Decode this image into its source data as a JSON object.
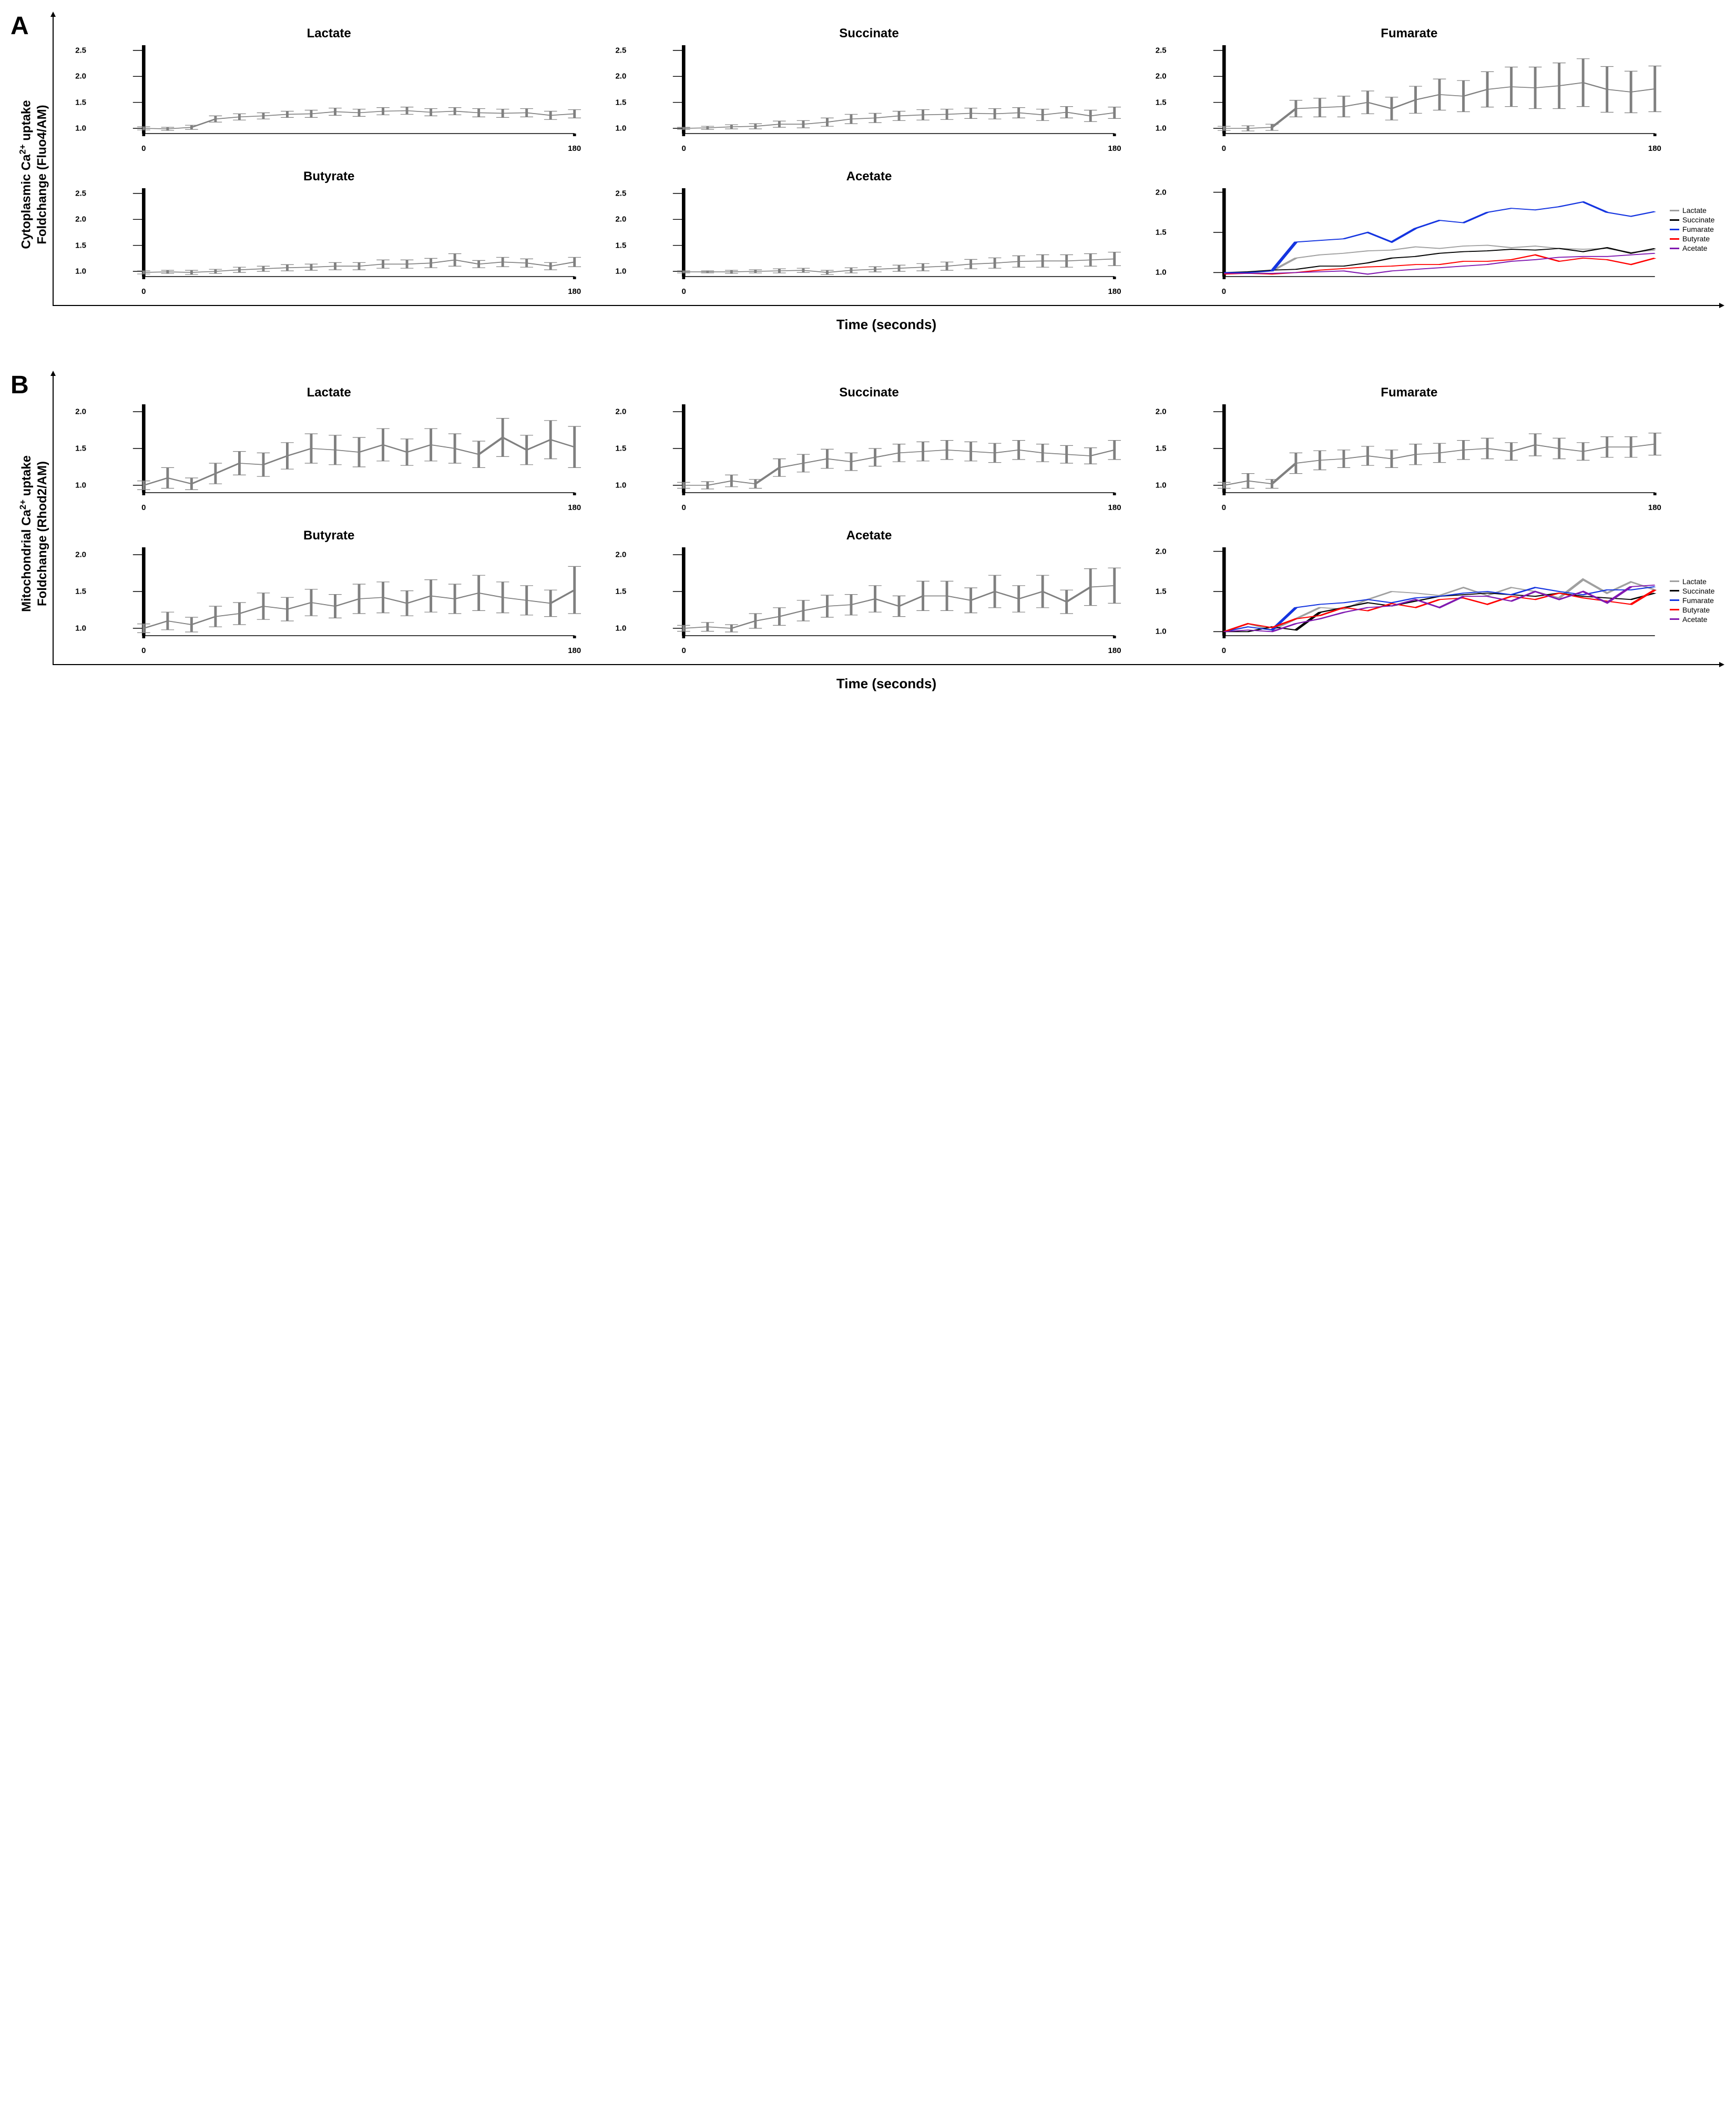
{
  "figure": {
    "x": [
      0,
      10,
      20,
      30,
      40,
      50,
      60,
      70,
      80,
      90,
      100,
      110,
      120,
      130,
      140,
      150,
      160,
      170,
      180
    ],
    "xaxis_label": "Time (seconds)",
    "xticks": [
      0,
      180
    ],
    "legend_labels": [
      "Lactate",
      "Succinate",
      "Fumarate",
      "Butyrate",
      "Acetate"
    ],
    "legend_colors": [
      "#a0a0a0",
      "#000000",
      "#1434e0",
      "#ff0000",
      "#8018b0"
    ],
    "series_plot_color": "#808080",
    "axis_color": "#000000",
    "line_width": 1.6
  },
  "panel_a": {
    "letter": "A",
    "ylabel_line1": "Cytoplasmic Ca",
    "ylabel_sup": "2+",
    "ylabel_line1b": " uptake",
    "ylabel_line2": "Foldchange (Fluo4/AM)",
    "ylim": [
      0.9,
      2.6
    ],
    "yticks": [
      1.0,
      1.5,
      2.0,
      2.5
    ],
    "summary_ylim": [
      0.95,
      2.05
    ],
    "summary_yticks": [
      1.0,
      1.5,
      2.0
    ],
    "subplots": [
      {
        "title": "Lactate",
        "y": [
          1.0,
          0.99,
          1.02,
          1.18,
          1.22,
          1.24,
          1.27,
          1.28,
          1.32,
          1.3,
          1.33,
          1.34,
          1.31,
          1.33,
          1.3,
          1.29,
          1.3,
          1.25,
          1.28
        ],
        "err": [
          0.03,
          0.03,
          0.04,
          0.06,
          0.06,
          0.06,
          0.06,
          0.07,
          0.07,
          0.07,
          0.07,
          0.07,
          0.07,
          0.07,
          0.08,
          0.08,
          0.08,
          0.08,
          0.08
        ]
      },
      {
        "title": "Succinate",
        "y": [
          1.0,
          1.01,
          1.03,
          1.04,
          1.08,
          1.08,
          1.12,
          1.18,
          1.2,
          1.24,
          1.26,
          1.27,
          1.29,
          1.28,
          1.3,
          1.26,
          1.31,
          1.24,
          1.3
        ],
        "err": [
          0.02,
          0.03,
          0.04,
          0.05,
          0.06,
          0.07,
          0.08,
          0.09,
          0.09,
          0.09,
          0.1,
          0.1,
          0.1,
          0.1,
          0.1,
          0.11,
          0.11,
          0.11,
          0.11
        ]
      },
      {
        "title": "Fumarate",
        "y": [
          1.0,
          1.0,
          1.02,
          1.38,
          1.4,
          1.42,
          1.5,
          1.38,
          1.55,
          1.65,
          1.62,
          1.75,
          1.8,
          1.78,
          1.82,
          1.88,
          1.75,
          1.7,
          1.76
        ],
        "err": [
          0.04,
          0.05,
          0.06,
          0.16,
          0.18,
          0.2,
          0.22,
          0.22,
          0.26,
          0.3,
          0.3,
          0.34,
          0.38,
          0.4,
          0.44,
          0.46,
          0.44,
          0.4,
          0.44
        ]
      },
      {
        "title": "Butyrate",
        "y": [
          0.98,
          0.99,
          0.98,
          1.0,
          1.03,
          1.05,
          1.07,
          1.08,
          1.1,
          1.1,
          1.14,
          1.14,
          1.16,
          1.22,
          1.14,
          1.18,
          1.16,
          1.1,
          1.18
        ],
        "err": [
          0.03,
          0.03,
          0.04,
          0.04,
          0.05,
          0.05,
          0.06,
          0.06,
          0.07,
          0.07,
          0.08,
          0.08,
          0.09,
          0.12,
          0.07,
          0.09,
          0.08,
          0.07,
          0.09
        ]
      },
      {
        "title": "Acetate",
        "y": [
          0.99,
          0.99,
          0.99,
          1.0,
          1.01,
          1.02,
          0.98,
          1.02,
          1.04,
          1.06,
          1.08,
          1.1,
          1.14,
          1.16,
          1.19,
          1.2,
          1.2,
          1.22,
          1.24
        ],
        "err": [
          0.02,
          0.02,
          0.03,
          0.03,
          0.04,
          0.04,
          0.04,
          0.05,
          0.05,
          0.06,
          0.07,
          0.08,
          0.09,
          0.1,
          0.11,
          0.12,
          0.12,
          0.12,
          0.13
        ]
      }
    ]
  },
  "panel_b": {
    "letter": "B",
    "ylabel_line1": "Mitochondrial  Ca",
    "ylabel_sup": "2+",
    "ylabel_line1b": " uptake",
    "ylabel_line2": "Foldchange (Rhod2/AM)",
    "ylim": [
      0.9,
      2.1
    ],
    "yticks": [
      1.0,
      1.5,
      2.0
    ],
    "summary_ylim": [
      0.95,
      2.05
    ],
    "summary_yticks": [
      1.0,
      1.5,
      2.0
    ],
    "subplots": [
      {
        "title": "Lactate",
        "y": [
          1.0,
          1.1,
          1.02,
          1.16,
          1.3,
          1.28,
          1.4,
          1.5,
          1.48,
          1.45,
          1.55,
          1.45,
          1.55,
          1.5,
          1.42,
          1.65,
          1.48,
          1.62,
          1.52
        ],
        "err": [
          0.06,
          0.14,
          0.08,
          0.14,
          0.16,
          0.16,
          0.18,
          0.2,
          0.2,
          0.2,
          0.22,
          0.18,
          0.22,
          0.2,
          0.18,
          0.26,
          0.2,
          0.26,
          0.28
        ]
      },
      {
        "title": "Succinate",
        "y": [
          1.0,
          1.0,
          1.06,
          1.02,
          1.24,
          1.3,
          1.36,
          1.32,
          1.38,
          1.44,
          1.46,
          1.48,
          1.46,
          1.44,
          1.48,
          1.44,
          1.42,
          1.4,
          1.48
        ],
        "err": [
          0.04,
          0.05,
          0.08,
          0.06,
          0.12,
          0.12,
          0.13,
          0.12,
          0.12,
          0.12,
          0.13,
          0.13,
          0.13,
          0.13,
          0.13,
          0.12,
          0.12,
          0.11,
          0.13
        ]
      },
      {
        "title": "Fumarate",
        "y": [
          1.0,
          1.06,
          1.02,
          1.3,
          1.34,
          1.36,
          1.4,
          1.36,
          1.42,
          1.44,
          1.48,
          1.5,
          1.46,
          1.55,
          1.5,
          1.46,
          1.52,
          1.52,
          1.56
        ],
        "err": [
          0.04,
          0.1,
          0.06,
          0.14,
          0.13,
          0.12,
          0.13,
          0.12,
          0.14,
          0.13,
          0.13,
          0.14,
          0.12,
          0.15,
          0.14,
          0.12,
          0.14,
          0.14,
          0.15
        ]
      },
      {
        "title": "Butyrate",
        "y": [
          1.0,
          1.1,
          1.05,
          1.16,
          1.2,
          1.3,
          1.26,
          1.35,
          1.3,
          1.4,
          1.42,
          1.34,
          1.44,
          1.4,
          1.48,
          1.42,
          1.38,
          1.34,
          1.52
        ],
        "err": [
          0.06,
          0.12,
          0.1,
          0.14,
          0.15,
          0.18,
          0.16,
          0.18,
          0.16,
          0.2,
          0.21,
          0.17,
          0.22,
          0.2,
          0.24,
          0.21,
          0.2,
          0.18,
          0.32
        ]
      },
      {
        "title": "Acetate",
        "y": [
          1.0,
          1.02,
          1.0,
          1.1,
          1.16,
          1.24,
          1.3,
          1.32,
          1.4,
          1.3,
          1.44,
          1.44,
          1.38,
          1.5,
          1.4,
          1.5,
          1.36,
          1.56,
          1.58
        ],
        "err": [
          0.04,
          0.06,
          0.05,
          0.1,
          0.12,
          0.14,
          0.15,
          0.14,
          0.18,
          0.14,
          0.2,
          0.2,
          0.17,
          0.22,
          0.18,
          0.22,
          0.16,
          0.25,
          0.24
        ]
      }
    ]
  }
}
